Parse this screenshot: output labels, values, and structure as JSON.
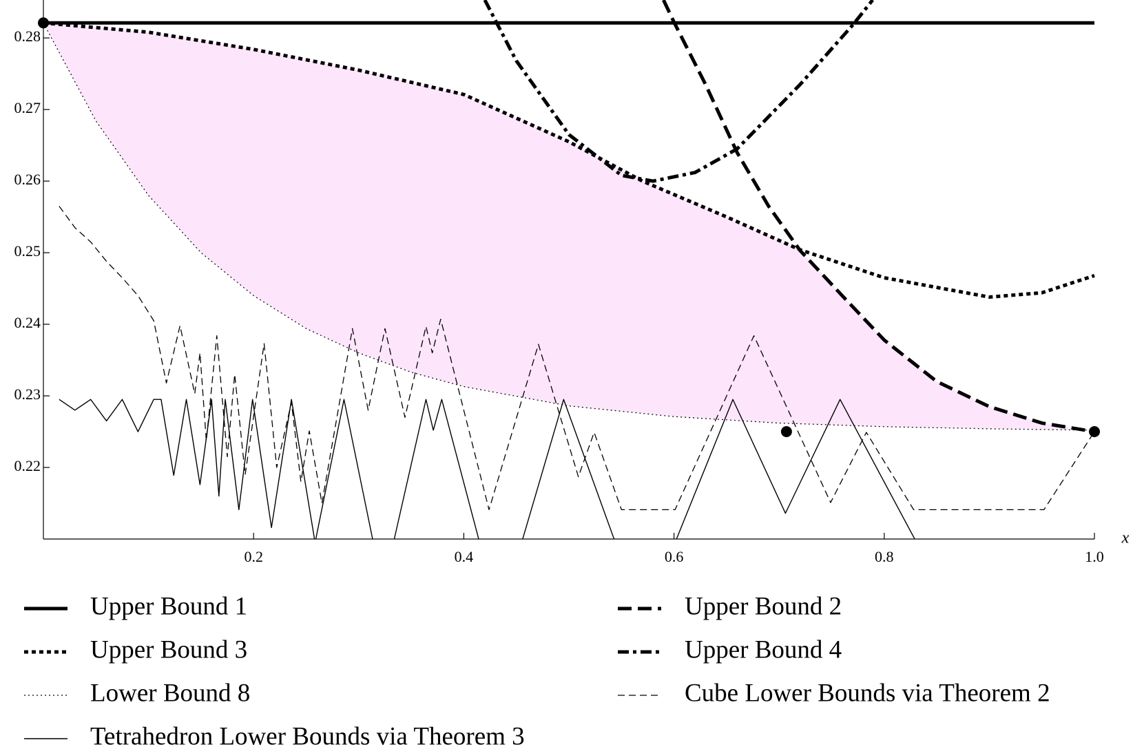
{
  "chart_data": {
    "type": "line",
    "xlabel": "x",
    "xlim": [
      0,
      1
    ],
    "ylim": [
      0.21,
      0.2853
    ],
    "xticks": [
      0.2,
      0.4,
      0.6,
      0.8,
      {
        "value": 1,
        "label": "1.0"
      }
    ],
    "yticks": [
      0.22,
      0.23,
      0.24,
      0.25,
      0.26,
      0.27,
      0.28
    ],
    "region_color": "#fde6fb",
    "series": [
      {
        "name": "Upper Bound 1",
        "color": "#000000",
        "style": "solid-thick",
        "x": [
          0,
          1
        ],
        "values": [
          0.2821,
          0.2821
        ]
      },
      {
        "name": "Upper Bound 2",
        "color": "#000000",
        "style": "dashed-thick",
        "x": [
          0.59,
          0.6,
          0.63,
          0.66,
          0.69,
          0.72,
          0.76,
          0.8,
          0.85,
          0.9,
          0.95,
          1.0
        ],
        "values": [
          0.2853,
          0.2822,
          0.2735,
          0.264,
          0.2565,
          0.2503,
          0.244,
          0.2378,
          0.232,
          0.2285,
          0.2262,
          0.225
        ]
      },
      {
        "name": "Upper Bound 3",
        "color": "#000000",
        "style": "dotted-thick",
        "x": [
          0,
          0.1,
          0.2,
          0.3,
          0.4,
          0.5,
          0.57,
          0.65,
          0.72,
          0.8,
          0.9,
          0.95,
          1.0
        ],
        "values": [
          0.2821,
          0.2808,
          0.2784,
          0.2755,
          0.2721,
          0.2655,
          0.26,
          0.255,
          0.2504,
          0.2465,
          0.2438,
          0.2444,
          0.2468
        ]
      },
      {
        "name": "Upper Bound 4",
        "color": "#000000",
        "style": "dashdot-thick",
        "x": [
          0.42,
          0.45,
          0.5,
          0.55,
          0.58,
          0.62,
          0.66,
          0.72,
          0.77,
          0.789
        ],
        "values": [
          0.2853,
          0.2768,
          0.2665,
          0.2608,
          0.26,
          0.2612,
          0.2645,
          0.2735,
          0.2818,
          0.2853
        ]
      },
      {
        "name": "Lower Bound 8",
        "color": "#000000",
        "style": "dotted-thin",
        "x": [
          0,
          0.05,
          0.1,
          0.15,
          0.2,
          0.25,
          0.3,
          0.35,
          0.4,
          0.5,
          0.6,
          0.7,
          0.8,
          0.9,
          1.0
        ],
        "values": [
          0.2821,
          0.2684,
          0.258,
          0.25,
          0.244,
          0.2394,
          0.236,
          0.2333,
          0.2313,
          0.2286,
          0.2271,
          0.2262,
          0.2257,
          0.2254,
          0.2252
        ]
      },
      {
        "name": "Cube Lower Bounds via Theorem 2",
        "color": "#000000",
        "style": "dashed-thin",
        "x": [
          0.015,
          0.03,
          0.045,
          0.06,
          0.075,
          0.09,
          0.105,
          0.117,
          0.13,
          0.144,
          0.149,
          0.155,
          0.165,
          0.175,
          0.182,
          0.192,
          0.21,
          0.222,
          0.236,
          0.245,
          0.253,
          0.265,
          0.294,
          0.309,
          0.325,
          0.344,
          0.364,
          0.37,
          0.378,
          0.424,
          0.471,
          0.509,
          0.524,
          0.55,
          0.601,
          0.676,
          0.749,
          0.783,
          0.828,
          0.952,
          1.0
        ],
        "values": [
          0.2565,
          0.2535,
          0.2515,
          0.2488,
          0.2465,
          0.244,
          0.2405,
          0.2318,
          0.2398,
          0.2303,
          0.236,
          0.2237,
          0.2384,
          0.2215,
          0.233,
          0.219,
          0.2373,
          0.22,
          0.2291,
          0.218,
          0.2251,
          0.215,
          0.2394,
          0.228,
          0.2394,
          0.227,
          0.2397,
          0.236,
          0.2407,
          0.2141,
          0.2372,
          0.2187,
          0.2249,
          0.2141,
          0.2141,
          0.2384,
          0.2151,
          0.2249,
          0.2141,
          0.2141,
          0.225
        ]
      },
      {
        "name": "Tetrahedron Lower Bounds via Theorem 3",
        "color": "#000000",
        "style": "solid-thin",
        "x": [
          0.015,
          0.03,
          0.045,
          0.06,
          0.075,
          0.09,
          0.105,
          0.112,
          0.124,
          0.136,
          0.149,
          0.16,
          0.167,
          0.173,
          0.186,
          0.199,
          0.217,
          0.236,
          0.2585,
          0.286,
          0.323,
          0.364,
          0.371,
          0.379,
          0.434,
          0.495,
          0.571,
          0.656,
          0.706,
          0.758,
          0.829
        ],
        "values": [
          0.2295,
          0.228,
          0.2295,
          0.2265,
          0.2295,
          0.225,
          0.2295,
          0.2295,
          0.2189,
          0.2295,
          0.2176,
          0.2295,
          0.216,
          0.2295,
          0.2141,
          0.2295,
          0.2116,
          0.2295,
          0.2095,
          0.2295,
          0.203,
          0.2295,
          0.2252,
          0.2295,
          0.199,
          0.2295,
          0.1986,
          0.2295,
          0.2136,
          0.2295,
          0.21
        ]
      }
    ],
    "points": {
      "color": "#000000",
      "x": [
        0,
        0.707,
        1.0
      ],
      "values": [
        0.2821,
        0.225,
        0.225
      ]
    }
  }
}
